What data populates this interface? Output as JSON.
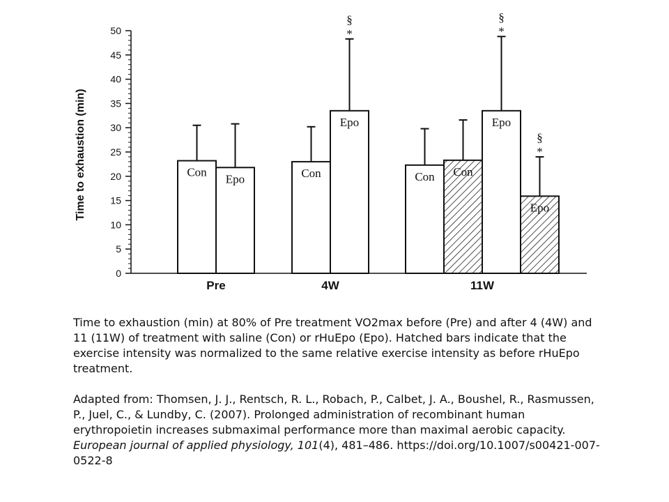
{
  "chart_data": {
    "type": "bar",
    "ylabel": "Time to exhaustion (min)",
    "ylim": [
      0,
      50
    ],
    "yticks": [
      0,
      5,
      10,
      15,
      20,
      25,
      30,
      35,
      40,
      45,
      50
    ],
    "grid": false,
    "groups": [
      {
        "name": "Pre",
        "bars": [
          {
            "label": "Con",
            "value": 23.2,
            "error": 7.3,
            "hatched": false,
            "marks": []
          },
          {
            "label": "Epo",
            "value": 21.8,
            "error": 9.0,
            "hatched": false,
            "marks": []
          }
        ]
      },
      {
        "name": "4W",
        "bars": [
          {
            "label": "Con",
            "value": 23.0,
            "error": 7.2,
            "hatched": false,
            "marks": []
          },
          {
            "label": "Epo",
            "value": 33.5,
            "error": 14.8,
            "hatched": false,
            "marks": [
              "§",
              "*"
            ]
          }
        ]
      },
      {
        "name": "11W",
        "bars": [
          {
            "label": "Con",
            "value": 22.3,
            "error": 7.5,
            "hatched": false,
            "marks": []
          },
          {
            "label": "Con",
            "value": 23.3,
            "error": 8.3,
            "hatched": true,
            "marks": []
          },
          {
            "label": "Epo",
            "value": 33.5,
            "error": 15.3,
            "hatched": false,
            "marks": [
              "§",
              "*"
            ]
          },
          {
            "label": "Epo",
            "value": 15.9,
            "error": 8.1,
            "hatched": true,
            "marks": [
              "§",
              "*"
            ]
          }
        ]
      }
    ]
  },
  "caption": {
    "text": "Time to exhaustion (min) at 80% of Pre treatment VO2max before (Pre) and after 4 (4W) and 11 (11W) of treatment with saline (Con) or rHuEpo (Epo). Hatched bars indicate that the exercise intensity was normalized to the same relative exercise intensity as before rHuEpo treatment.",
    "citation_before": "Adapted from: Thomsen, J. J., Rentsch, R. L., Robach, P., Calbet, J. A., Boushel, R., Rasmussen, P., Juel, C., & Lundby, C. (2007). Prolonged administration of recombinant human erythropoietin increases submaximal performance more than maximal aerobic capacity. ",
    "citation_journal": "European journal of applied physiology, 101",
    "citation_after": "(4), 481–486. https://doi.org/10.1007/s00421-007-0522-8"
  }
}
